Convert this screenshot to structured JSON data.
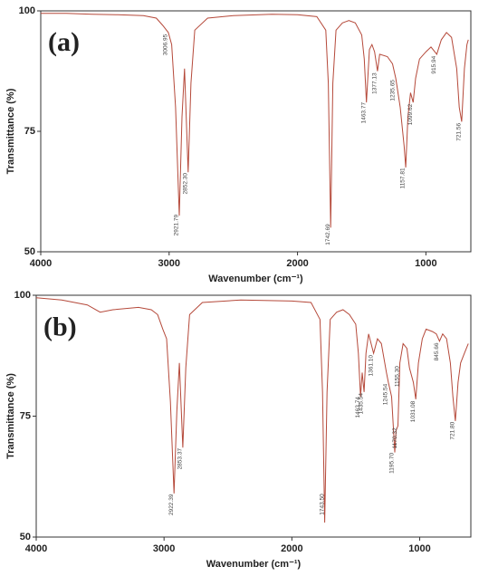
{
  "chart_data": [
    {
      "type": "line",
      "title": "(a)",
      "x_label": "Wavenumber (cm⁻¹)",
      "y_label": "Transmittance (%)",
      "color": "#b5493a",
      "xlim": [
        4000,
        650
      ],
      "ylim": [
        50,
        100
      ],
      "xticks": [
        4000,
        3000,
        2000,
        1000
      ],
      "yticks": [
        50,
        75,
        100
      ],
      "x": [
        4000,
        3800,
        3600,
        3400,
        3200,
        3100,
        3050,
        3006,
        2980,
        2950,
        2921,
        2900,
        2880,
        2852,
        2830,
        2800,
        2700,
        2500,
        2200,
        2000,
        1850,
        1780,
        1760,
        1742,
        1725,
        1700,
        1650,
        1600,
        1550,
        1500,
        1480,
        1463,
        1440,
        1420,
        1400,
        1377,
        1360,
        1300,
        1260,
        1235,
        1200,
        1170,
        1157,
        1140,
        1120,
        1099,
        1080,
        1050,
        1000,
        960,
        915,
        880,
        840,
        800,
        760,
        740,
        721,
        700,
        680,
        670
      ],
      "values": [
        99.5,
        99.5,
        99.3,
        99.2,
        99,
        98.5,
        97,
        95.5,
        93,
        80,
        57.5,
        78,
        88,
        66.5,
        85,
        96,
        98.5,
        99,
        99.3,
        99.2,
        98.8,
        96,
        85,
        55,
        85,
        96,
        97.5,
        98,
        97.5,
        95,
        90,
        81,
        92,
        93,
        91.5,
        87.5,
        91,
        90.5,
        89,
        86,
        80,
        72,
        67.5,
        78,
        83,
        81,
        86,
        90,
        91.5,
        92.5,
        91,
        94,
        95.5,
        94.5,
        88,
        80,
        77,
        88,
        93,
        94
      ],
      "annotations": [
        "3006.95",
        "2921.79",
        "2852.30",
        "1742.69",
        "1463.77",
        "1377.13",
        "1235.65",
        "1157.81",
        "1099.62",
        "915.94",
        "721.56"
      ]
    },
    {
      "type": "line",
      "title": "(b)",
      "x_label": "Wavenumber (cm⁻¹)",
      "y_label": "Transmittance (%)",
      "color": "#b5493a",
      "xlim": [
        4000,
        600
      ],
      "ylim": [
        50,
        100
      ],
      "xticks": [
        4000,
        3000,
        2000,
        1000
      ],
      "yticks": [
        50,
        75,
        100
      ],
      "x": [
        4000,
        3800,
        3600,
        3500,
        3400,
        3200,
        3100,
        3050,
        3010,
        2980,
        2950,
        2922,
        2900,
        2880,
        2853,
        2830,
        2800,
        2700,
        2400,
        2000,
        1850,
        1780,
        1760,
        1743,
        1725,
        1700,
        1650,
        1600,
        1550,
        1500,
        1480,
        1463,
        1450,
        1435,
        1420,
        1400,
        1361,
        1330,
        1300,
        1260,
        1245,
        1220,
        1195,
        1185,
        1170,
        1155,
        1130,
        1100,
        1080,
        1050,
        1031,
        1010,
        980,
        950,
        900,
        870,
        845,
        820,
        790,
        760,
        740,
        721,
        700,
        680,
        650,
        620
      ],
      "values": [
        99.5,
        99,
        98,
        96.5,
        97,
        97.5,
        97,
        96,
        93,
        91,
        78,
        59,
        76,
        86,
        68.5,
        85,
        96,
        98.5,
        99,
        98.8,
        98.5,
        95,
        80,
        53,
        80,
        95,
        96.5,
        97,
        96,
        94,
        88,
        79,
        84,
        80,
        88,
        92,
        88,
        91,
        90,
        84,
        82,
        79,
        67.5,
        72,
        73,
        86,
        90,
        89,
        85,
        82,
        78.5,
        86,
        91,
        93,
        92.5,
        92,
        90.5,
        92,
        91,
        86,
        79,
        74,
        82,
        86,
        88,
        90
      ],
      "annotations": [
        "2922.39",
        "2853.37",
        "1743.50",
        "1463.74",
        "1435.54",
        "1361.10",
        "1245.54",
        "1195.70",
        "1170.32",
        "1155.30",
        "1031.08",
        "845.66",
        "721.80"
      ]
    }
  ]
}
